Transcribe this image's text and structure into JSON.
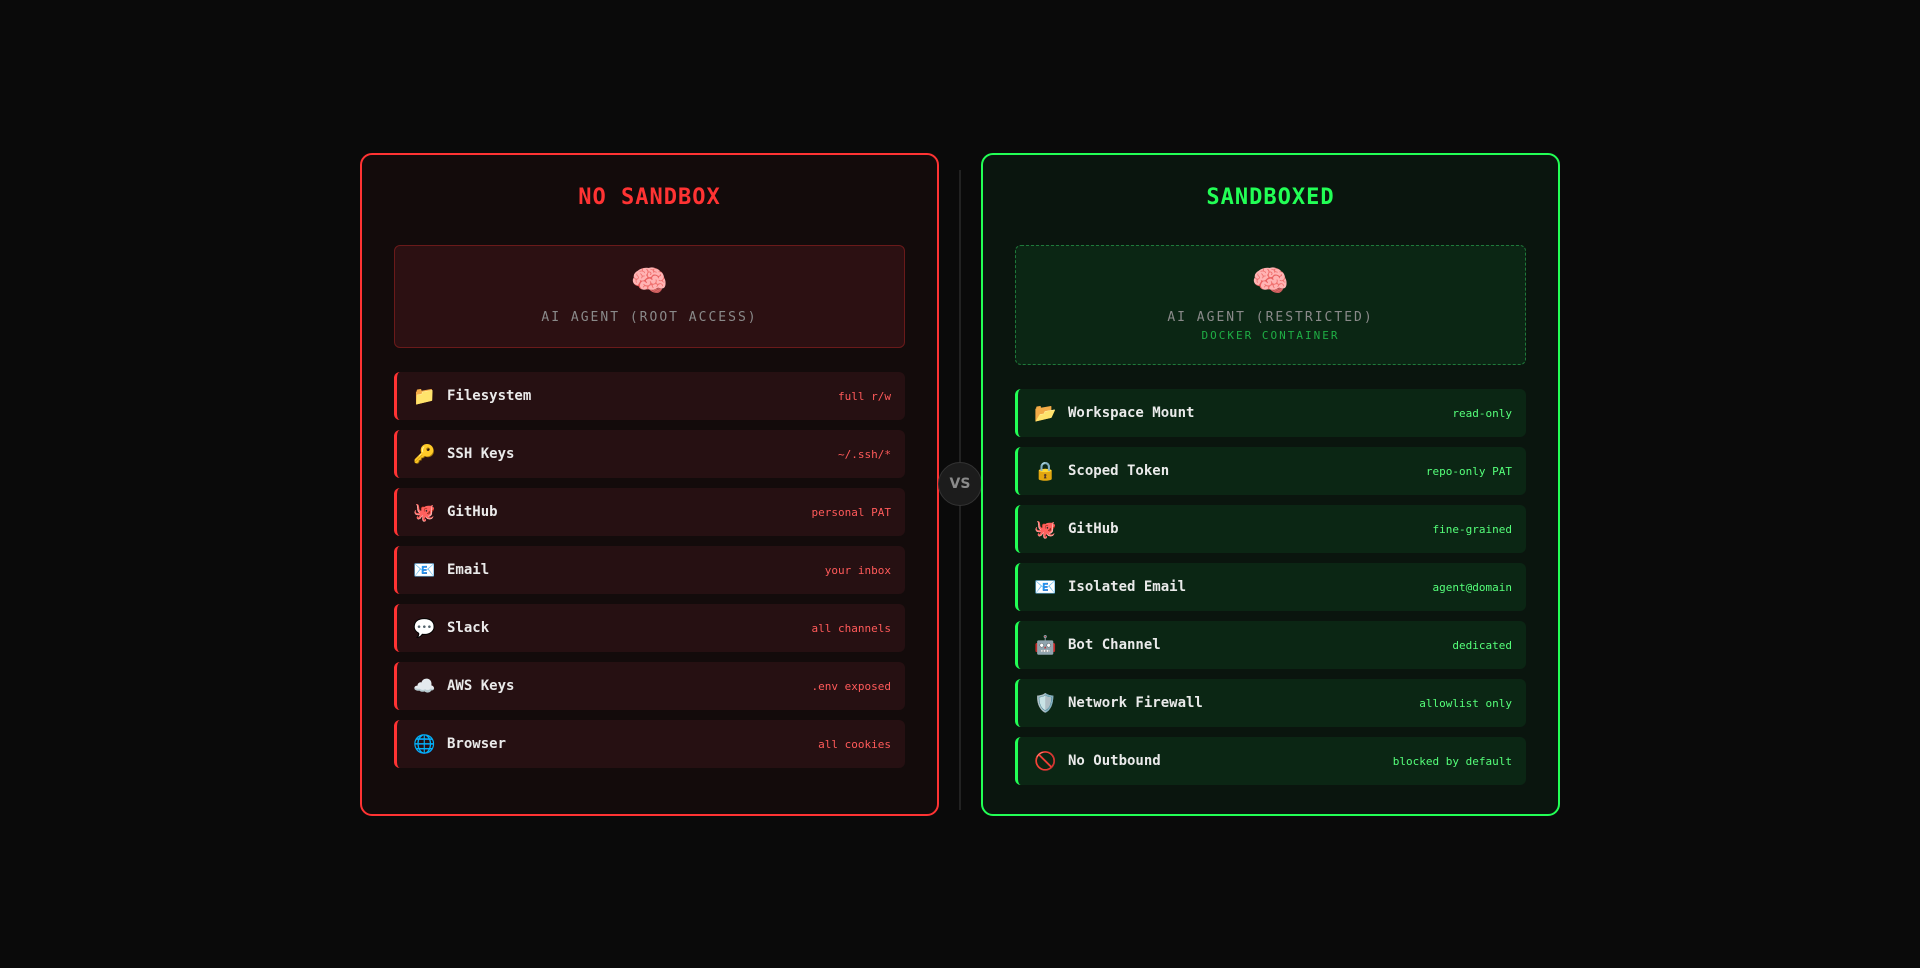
{
  "left": {
    "title": "NO SANDBOX",
    "agent_icon": "🧠",
    "agent_label": "AI AGENT (ROOT ACCESS)",
    "color": "#ff3333",
    "items": [
      {
        "icon": "📁",
        "label": "Filesystem",
        "desc": "full r/w"
      },
      {
        "icon": "🔑",
        "label": "SSH Keys",
        "desc": "~/.ssh/*"
      },
      {
        "icon": "🐙",
        "label": "GitHub",
        "desc": "personal PAT"
      },
      {
        "icon": "📧",
        "label": "Email",
        "desc": "your inbox"
      },
      {
        "icon": "💬",
        "label": "Slack",
        "desc": "all channels"
      },
      {
        "icon": "☁️",
        "label": "AWS Keys",
        "desc": ".env exposed"
      },
      {
        "icon": "🌐",
        "label": "Browser",
        "desc": "all cookies"
      }
    ]
  },
  "vs": "VS",
  "right": {
    "title": "SANDBOXED",
    "agent_icon": "🧠",
    "agent_label": "AI AGENT (RESTRICTED)",
    "agent_sub": "DOCKER CONTAINER",
    "color": "#22ff55",
    "items": [
      {
        "icon": "📂",
        "label": "Workspace Mount",
        "desc": "read-only"
      },
      {
        "icon": "🔒",
        "label": "Scoped Token",
        "desc": "repo-only PAT"
      },
      {
        "icon": "🐙",
        "label": "GitHub",
        "desc": "fine-grained"
      },
      {
        "icon": "📧",
        "label": "Isolated Email",
        "desc": "agent@domain"
      },
      {
        "icon": "🤖",
        "label": "Bot Channel",
        "desc": "dedicated"
      },
      {
        "icon": "🛡️",
        "label": "Network Firewall",
        "desc": "allowlist only"
      },
      {
        "icon": "🚫",
        "label": "No Outbound",
        "desc": "blocked by default"
      }
    ]
  }
}
